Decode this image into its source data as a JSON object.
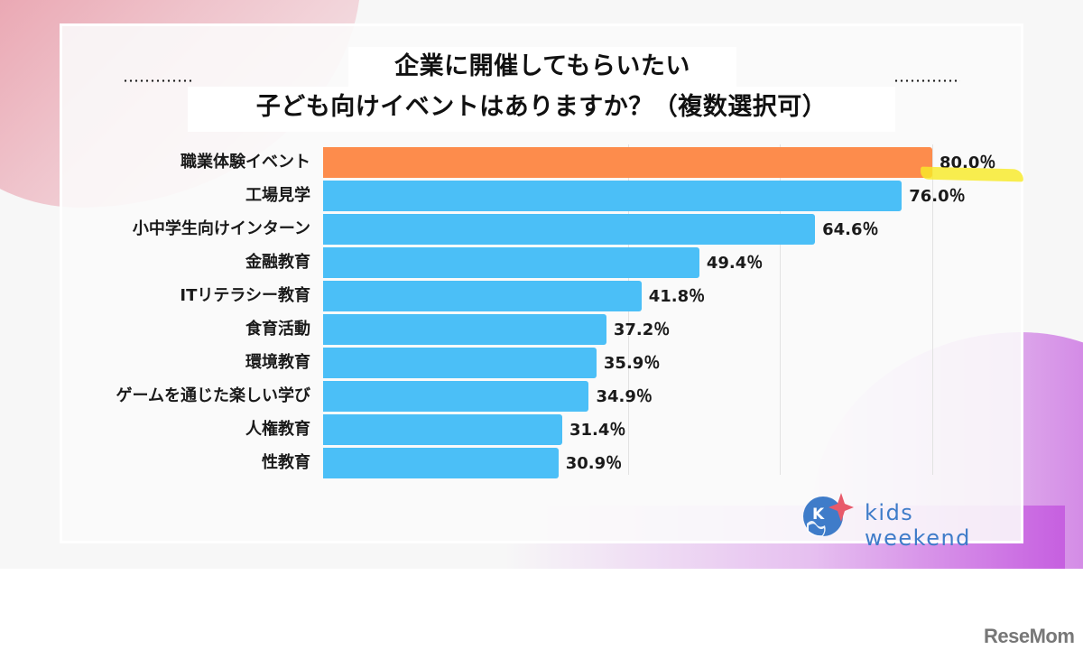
{
  "title": {
    "line1": "企業に開催してもらいたい",
    "line2": "子ども向けイベントはありますか？（複数選択可）"
  },
  "colors": {
    "highlight_bar": "#fd8c4c",
    "bar": "#4bbff7",
    "accent_marker": "#f8ea28",
    "logo_blue": "#3f7cc9",
    "logo_star": "#e85a6a"
  },
  "logo": {
    "text": "kids weekend"
  },
  "watermark": {
    "text": "ReseMom"
  },
  "chart_data": {
    "type": "bar",
    "orientation": "horizontal",
    "title": "企業に開催してもらいたい子ども向けイベントはありますか？（複数選択可）",
    "xlabel": "",
    "ylabel": "",
    "unit": "%",
    "xlim": [
      0,
      80
    ],
    "gridlines_x": [
      40,
      60,
      80
    ],
    "categories": [
      "職業体験イベント",
      "工場見学",
      "小中学生向けインターン",
      "金融教育",
      "ITリテラシー教育",
      "食育活動",
      "環境教育",
      "ゲームを通じた楽しい学び",
      "人権教育",
      "性教育"
    ],
    "values": [
      80.0,
      76.0,
      64.6,
      49.4,
      41.8,
      37.2,
      35.9,
      34.9,
      31.4,
      30.9
    ],
    "labels": [
      "80.0％",
      "76.0％",
      "64.6％",
      "49.4％",
      "41.8％",
      "37.2％",
      "35.9％",
      "34.9％",
      "31.4％",
      "30.9％"
    ],
    "highlighted_index": 0
  }
}
